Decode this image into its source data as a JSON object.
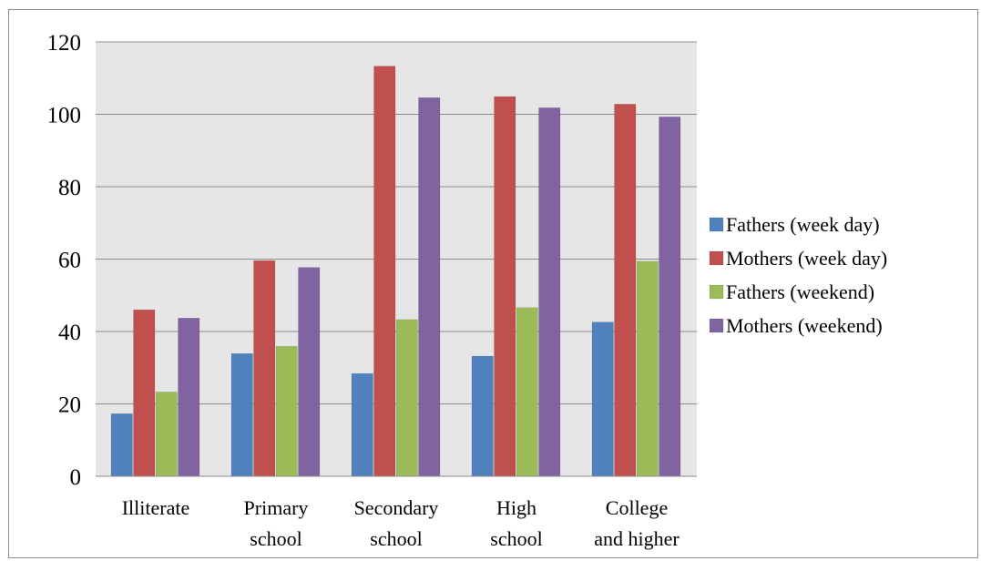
{
  "chart_data": {
    "type": "bar",
    "categories": [
      [
        "Illiterate"
      ],
      [
        "Primary",
        "school"
      ],
      [
        "Secondary",
        "school"
      ],
      [
        "High",
        "school"
      ],
      [
        "College",
        "and higher"
      ]
    ],
    "series": [
      {
        "name": "Fathers (week day)",
        "color": "#4f81bd",
        "values": [
          17.3,
          33.9,
          28.4,
          33.2,
          42.6
        ]
      },
      {
        "name": "Mothers (week day)",
        "color": "#c0504d",
        "values": [
          46.0,
          59.6,
          113.3,
          104.9,
          102.8
        ]
      },
      {
        "name": "Fathers (weekend)",
        "color": "#9bbb59",
        "values": [
          23.3,
          35.9,
          43.3,
          46.6,
          59.4
        ]
      },
      {
        "name": "Mothers (weekend)",
        "color": "#8064a2",
        "values": [
          43.7,
          57.7,
          104.6,
          101.8,
          99.3
        ]
      }
    ],
    "yticks": [
      "0",
      "20",
      "40",
      "60",
      "80",
      "100",
      "120"
    ],
    "ylim": [
      0,
      120
    ],
    "grid": true,
    "plot_background": "#e6e6e6",
    "legend_position": "right"
  }
}
